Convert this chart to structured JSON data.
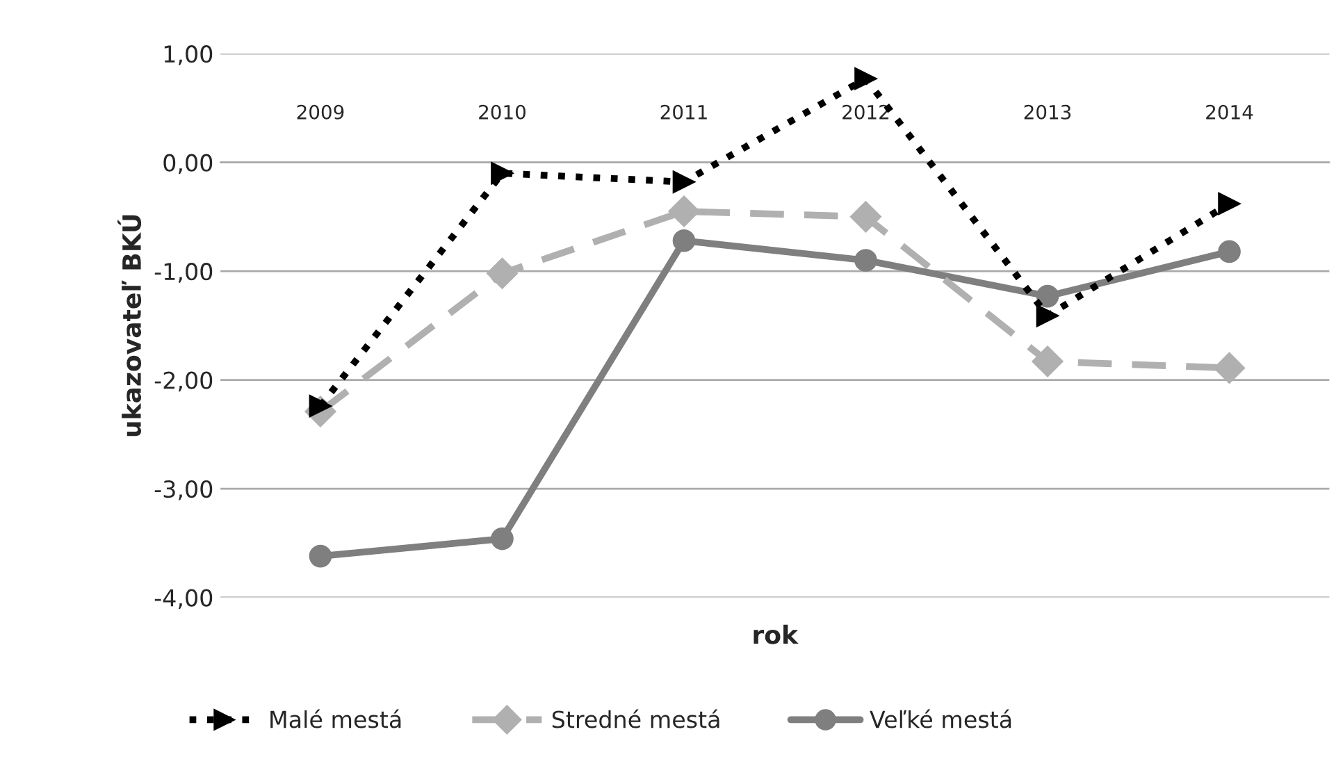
{
  "chart_data": {
    "type": "line",
    "xlabel": "rok",
    "ylabel": "ukazovateľ BKÚ",
    "categories": [
      "2009",
      "2010",
      "2011",
      "2012",
      "2013",
      "2014"
    ],
    "series": [
      {
        "name": "Malé mestá",
        "color": "#000000",
        "marker": "triangle",
        "line_style": "dotted",
        "values": [
          -2.24,
          -0.1,
          -0.18,
          0.77,
          -1.41,
          -0.38
        ]
      },
      {
        "name": "Stredné mestá",
        "color": "#b0b0b0",
        "marker": "diamond",
        "line_style": "dashed",
        "values": [
          -2.29,
          -1.02,
          -0.45,
          -0.5,
          -1.83,
          -1.89
        ]
      },
      {
        "name": "Veľké mestá",
        "color": "#7f7f7f",
        "marker": "circle",
        "line_style": "solid",
        "values": [
          -3.62,
          -3.46,
          -0.72,
          -0.9,
          -1.23,
          -0.82
        ]
      }
    ],
    "ylim": [
      -4,
      1
    ],
    "yticks": [
      {
        "value": -4,
        "label": "-4,00"
      },
      {
        "value": -3,
        "label": "-3,00"
      },
      {
        "value": -2,
        "label": "-2,00"
      },
      {
        "value": -1,
        "label": "-1,00"
      },
      {
        "value": 0,
        "label": "0,00"
      },
      {
        "value": 1,
        "label": "1,00"
      }
    ],
    "grid": "y",
    "legend": "bottom"
  }
}
